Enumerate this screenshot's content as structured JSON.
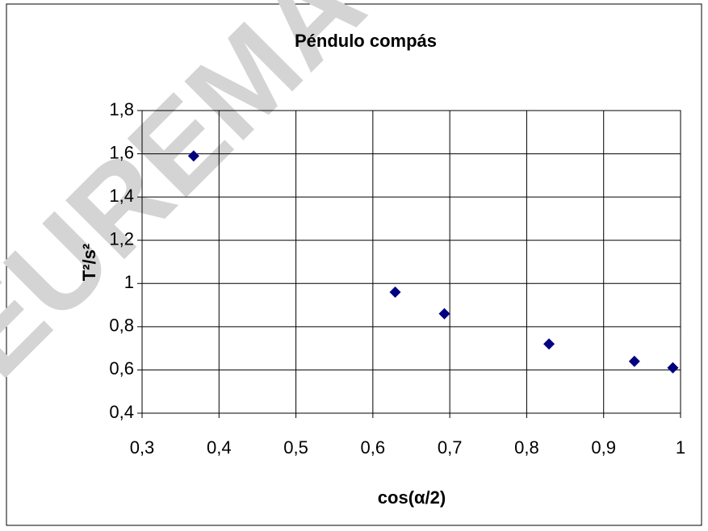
{
  "chart_data": {
    "type": "scatter",
    "title": "Péndulo compás",
    "xlabel": "cos(α/2)",
    "ylabel": "T²/s²",
    "x": [
      0.367,
      0.629,
      0.693,
      0.829,
      0.94,
      0.99
    ],
    "values": [
      1.59,
      0.96,
      0.86,
      0.72,
      0.64,
      0.61
    ],
    "color": "#000080",
    "xlim": [
      0.3,
      1
    ],
    "xticks": [
      {
        "value": 0.3,
        "label": "0,3"
      },
      {
        "value": 0.4,
        "label": "0,4"
      },
      {
        "value": 0.5,
        "label": "0,5"
      },
      {
        "value": 0.6,
        "label": "0,6"
      },
      {
        "value": 0.7,
        "label": "0,7"
      },
      {
        "value": 0.8,
        "label": "0,8"
      },
      {
        "value": 0.9,
        "label": "0,9"
      },
      1
    ],
    "ylim": [
      0.4,
      1.8
    ],
    "yticks": [
      {
        "value": 0.4,
        "label": "0,4"
      },
      {
        "value": 0.6,
        "label": "0,6"
      },
      {
        "value": 0.8,
        "label": "0,8"
      },
      1,
      {
        "value": 1.2,
        "label": "1,2"
      },
      {
        "value": 1.4,
        "label": "1,4"
      },
      {
        "value": 1.6,
        "label": "1,6"
      },
      {
        "value": 1.8,
        "label": "1,8"
      }
    ],
    "grid": true,
    "watermark": "EUREMA-F"
  }
}
